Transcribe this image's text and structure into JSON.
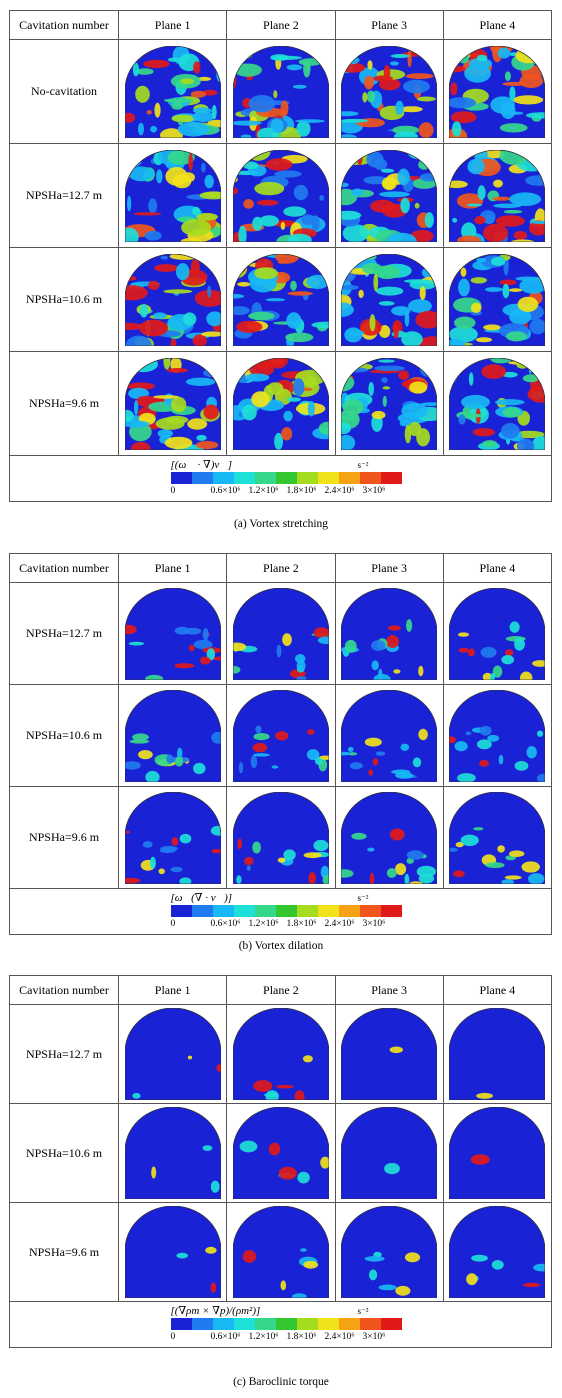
{
  "columns": [
    "Cavitation number",
    "Plane 1",
    "Plane 2",
    "Plane 3",
    "Plane 4"
  ],
  "colorbar": {
    "colors": [
      "#1a22d6",
      "#1f7cf0",
      "#18b8f5",
      "#1de0d8",
      "#35d88a",
      "#34c730",
      "#a6dc1e",
      "#f1e21a",
      "#f5a315",
      "#f0561b",
      "#e01a1a"
    ],
    "ticks": [
      "0",
      "0.6×10⁶",
      "1.2×10⁶",
      "1.8×10⁶",
      "2.4×10⁶",
      "3×10⁶"
    ],
    "unit": "s⁻²"
  },
  "panels": [
    {
      "caption": "(a)    Vortex stretching",
      "legend_title": "[(ω⃗ · ∇)v⃗]",
      "rows": [
        "No-cavitation",
        "NPSHa=12.7 m",
        "NPSHa=10.6 m",
        "NPSHa=9.6 m"
      ]
    },
    {
      "caption": "(b)    Vortex dilation",
      "legend_title": "[ω⃗(∇ · v⃗)]",
      "rows": [
        "NPSHa=12.7 m",
        "NPSHa=10.6 m",
        "NPSHa=9.6 m"
      ]
    },
    {
      "caption": "(c)    Baroclinic torque",
      "legend_title": "[(∇ρm × ∇p)/(ρm²)]",
      "rows": [
        "NPSHa=12.7 m",
        "NPSHa=10.6 m",
        "NPSHa=9.6 m"
      ]
    }
  ]
}
